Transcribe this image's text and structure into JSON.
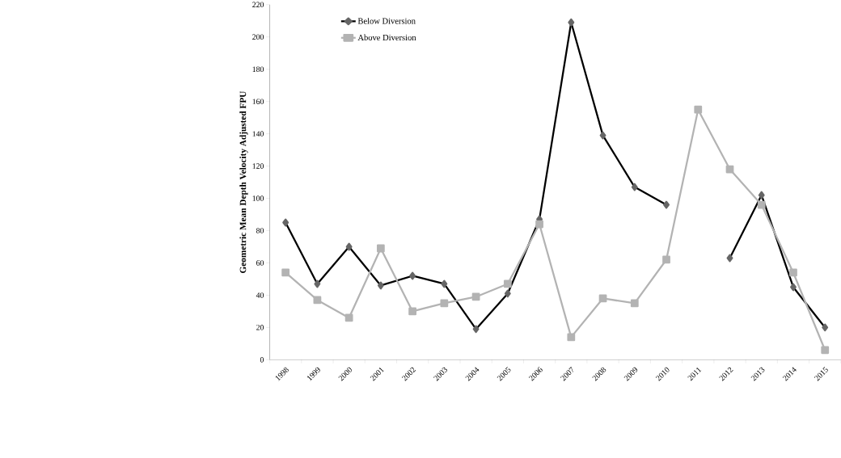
{
  "chart_data": {
    "type": "line",
    "ylabel": "Geometric Mean Depth Velocity Adjusted FPU",
    "categories": [
      "1998",
      "1999",
      "2000",
      "2001",
      "2002",
      "2003",
      "2004",
      "2005",
      "2006",
      "2007",
      "2008",
      "2009",
      "2010",
      "2011",
      "2012",
      "2013",
      "2014",
      "2015"
    ],
    "series": [
      {
        "name": "Below Diversion",
        "color": "#000000",
        "marker": "diamond",
        "values": [
          85,
          47,
          70,
          46,
          52,
          47,
          19,
          41,
          87,
          209,
          139,
          107,
          96,
          null,
          63,
          102,
          45,
          20
        ]
      },
      {
        "name": "Above Diversion",
        "color": "#b3b3b3",
        "marker": "square",
        "values": [
          54,
          37,
          26,
          69,
          30,
          35,
          39,
          47,
          84,
          14,
          38,
          35,
          62,
          155,
          118,
          96,
          54,
          6
        ]
      }
    ],
    "ylim": [
      0,
      220
    ],
    "yticks": [
      0,
      20,
      40,
      60,
      80,
      100,
      120,
      140,
      160,
      180,
      200,
      220
    ],
    "grid": false,
    "legend": "top left",
    "line_style": "solid"
  }
}
